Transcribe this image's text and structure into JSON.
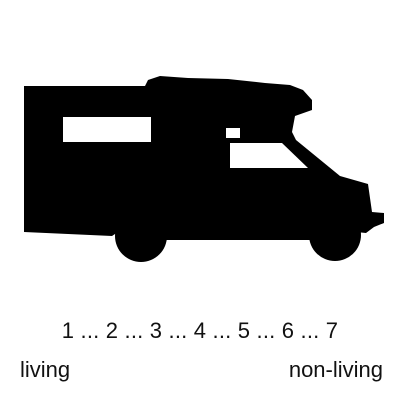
{
  "image": {
    "icon": "camper-van-silhouette-icon",
    "fill": "#000000",
    "background": "#ffffff"
  },
  "rating_scale": {
    "points": [
      "1",
      "2",
      "3",
      "4",
      "5",
      "6",
      "7"
    ],
    "separator": " ... ",
    "left_anchor": "living",
    "right_anchor": "non-living"
  }
}
